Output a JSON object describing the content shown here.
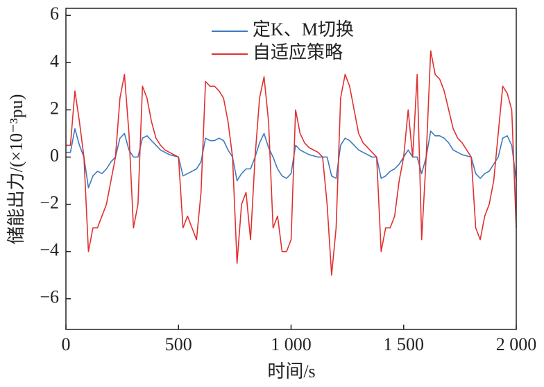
{
  "chart_data": {
    "type": "line",
    "xlabel": "时间/s",
    "ylabel": "储能出力/(×10⁻³pu)",
    "xlim": [
      0,
      2000
    ],
    "ylim": [
      -7.3,
      6.3
    ],
    "xticks": [
      0,
      500,
      {
        "value": 1000,
        "label": "1 000"
      },
      {
        "value": 1500,
        "label": "1 500"
      },
      {
        "value": 2000,
        "label": "2 000"
      }
    ],
    "yticks": [
      {
        "value": -6,
        "label": "−6"
      },
      {
        "value": -4,
        "label": "−4"
      },
      {
        "value": -2,
        "label": "−2"
      },
      0,
      2,
      4,
      6
    ],
    "legend": "upper center",
    "x": [
      0,
      20,
      40,
      60,
      80,
      100,
      120,
      140,
      160,
      180,
      200,
      220,
      240,
      260,
      280,
      300,
      320,
      340,
      360,
      380,
      400,
      420,
      440,
      460,
      480,
      500,
      520,
      540,
      560,
      580,
      600,
      620,
      640,
      660,
      680,
      700,
      720,
      740,
      760,
      780,
      800,
      820,
      840,
      860,
      880,
      900,
      920,
      940,
      960,
      980,
      1000,
      1020,
      1040,
      1060,
      1080,
      1100,
      1120,
      1140,
      1160,
      1180,
      1200,
      1220,
      1240,
      1260,
      1280,
      1300,
      1320,
      1340,
      1360,
      1380,
      1400,
      1420,
      1440,
      1460,
      1480,
      1500,
      1520,
      1540,
      1560,
      1580,
      1600,
      1620,
      1640,
      1660,
      1680,
      1700,
      1720,
      1740,
      1760,
      1780,
      1800,
      1820,
      1840,
      1860,
      1880,
      1900,
      1920,
      1940,
      1960,
      1980,
      2000
    ],
    "series": [
      {
        "name": "定K、M切换",
        "color": "#3a7bbf",
        "values": [
          0.2,
          0.2,
          1.2,
          0.5,
          0,
          -1.3,
          -0.8,
          -0.6,
          -0.7,
          -0.5,
          -0.2,
          0,
          0.8,
          1,
          0.3,
          0,
          0,
          0.8,
          0.9,
          0.7,
          0.5,
          0.3,
          0.2,
          0.1,
          0.05,
          0,
          -0.8,
          -0.7,
          -0.6,
          -0.5,
          -0.2,
          0.8,
          0.7,
          0.7,
          0.8,
          0.7,
          0.3,
          0,
          -1,
          -0.7,
          -0.5,
          -0.5,
          0,
          0.6,
          1,
          0.4,
          0,
          -0.5,
          -0.8,
          -0.9,
          -0.7,
          0.5,
          0.3,
          0.2,
          0.1,
          0.05,
          0,
          0,
          0,
          -0.8,
          -0.9,
          0.5,
          0.8,
          0.7,
          0.5,
          0.3,
          0.2,
          0.1,
          0,
          0,
          -0.9,
          -0.8,
          -0.6,
          -0.5,
          -0.3,
          0,
          0.3,
          0,
          0,
          -0.7,
          0,
          1.1,
          0.9,
          0.9,
          0.8,
          0.6,
          0.3,
          0.2,
          0.1,
          0.05,
          0,
          -0.7,
          -0.9,
          -0.7,
          -0.6,
          -0.3,
          0,
          0.8,
          0.9,
          0.5,
          -1
        ]
      },
      {
        "name": "自适应策略",
        "color": "#e0302f",
        "values": [
          0.5,
          0.5,
          2.8,
          1.5,
          0,
          -4,
          -3,
          -3,
          -2.5,
          -2,
          -1,
          0,
          2.5,
          3.5,
          1,
          -3,
          -2,
          3,
          2.5,
          1.5,
          0.8,
          0.5,
          0.3,
          0.2,
          0.1,
          0,
          -3,
          -2.5,
          -3,
          -3.5,
          -1.5,
          3.2,
          3,
          3,
          2.8,
          2.5,
          1.5,
          0,
          -4.5,
          -2,
          -1.5,
          -3.5,
          0,
          2.5,
          3.4,
          1.5,
          -3,
          -2.5,
          -4,
          -4,
          -3.5,
          2,
          1,
          0.6,
          0.4,
          0.3,
          0.2,
          0,
          -2,
          -5,
          -3,
          2.5,
          3.5,
          3,
          2,
          1,
          0.6,
          0.4,
          0.2,
          0,
          -4,
          -3,
          -3,
          -2.5,
          -1,
          0,
          2,
          0,
          3.5,
          -3.5,
          0,
          4.5,
          3.5,
          3.3,
          2.8,
          2,
          1.2,
          0.8,
          0.6,
          0.3,
          0,
          -3,
          -3.5,
          -2.5,
          -2,
          -1,
          1,
          3,
          2.7,
          2,
          -3
        ]
      }
    ]
  }
}
